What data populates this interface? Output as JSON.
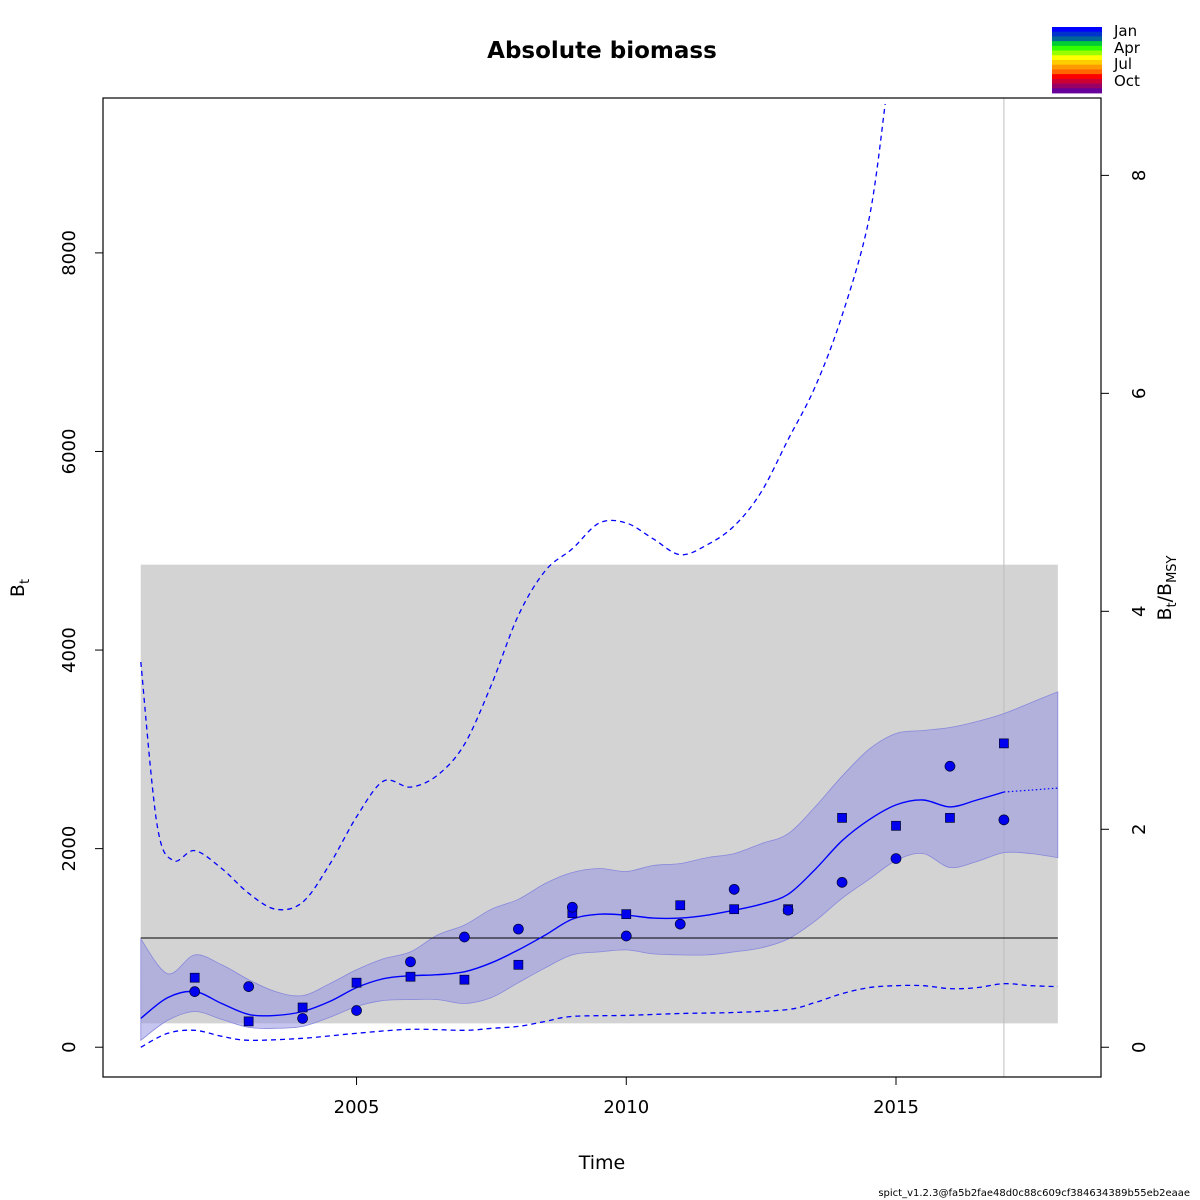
{
  "chart_data": {
    "type": "line",
    "title": "Absolute biomass",
    "xlabel": "Time",
    "ylabel_left": {
      "base": "B",
      "sub": "t"
    },
    "ylabel_right": {
      "base1": "B",
      "sub1": "t",
      "sep": "/",
      "base2": "B",
      "sub2": "MSY"
    },
    "xlim": [
      2000.3,
      2018.8
    ],
    "ylim_left": [
      -300,
      9560
    ],
    "ylim_right": [
      -0.273,
      8.71
    ],
    "bmsy_to_right_factor": 0.000911,
    "x_ticks": [
      "2005",
      "2010",
      "2015"
    ],
    "y_ticks_left": [
      "0",
      "2000",
      "4000",
      "6000",
      "8000"
    ],
    "y_ticks_right": [
      "0",
      "2",
      "4",
      "6",
      "8"
    ],
    "vertical_line_x": 2017,
    "bmsy_line_y": 1100,
    "bmsy_ci_band": {
      "x": [
        2001,
        2018
      ],
      "y": [
        240,
        4860
      ]
    },
    "biomass_estimate": {
      "x": [
        2001,
        2001.5,
        2002,
        2002.5,
        2003,
        2003.5,
        2004,
        2004.5,
        2005,
        2005.5,
        2006,
        2006.5,
        2007,
        2007.5,
        2008,
        2008.5,
        2009,
        2009.5,
        2010,
        2010.5,
        2011,
        2011.5,
        2012,
        2012.5,
        2013,
        2013.5,
        2014,
        2014.5,
        2015,
        2015.5,
        2016,
        2016.5,
        2017
      ],
      "y": [
        290,
        500,
        560,
        440,
        330,
        320,
        360,
        460,
        600,
        690,
        720,
        730,
        760,
        850,
        980,
        1130,
        1290,
        1340,
        1330,
        1300,
        1300,
        1330,
        1380,
        1440,
        1540,
        1790,
        2080,
        2290,
        2440,
        2490,
        2420,
        2490,
        2570
      ]
    },
    "biomass_forecast": {
      "x": [
        2017,
        2017.5,
        2018
      ],
      "y": [
        2570,
        2590,
        2610
      ]
    },
    "biomass_ci_band": {
      "x": [
        2001,
        2001.5,
        2002,
        2002.5,
        2003,
        2003.5,
        2004,
        2004.5,
        2005,
        2005.5,
        2006,
        2006.5,
        2007,
        2007.5,
        2008,
        2008.5,
        2009,
        2009.5,
        2010,
        2010.5,
        2011,
        2011.5,
        2012,
        2012.5,
        2013,
        2013.5,
        2014,
        2014.5,
        2015,
        2015.5,
        2016,
        2016.5,
        2017,
        2017.5,
        2018
      ],
      "upper": [
        1090,
        740,
        930,
        830,
        680,
        560,
        520,
        640,
        780,
        890,
        960,
        1130,
        1230,
        1390,
        1490,
        1650,
        1760,
        1800,
        1770,
        1830,
        1850,
        1910,
        1950,
        2050,
        2150,
        2420,
        2730,
        3000,
        3160,
        3190,
        3220,
        3280,
        3360,
        3470,
        3580
      ],
      "lower": [
        70,
        270,
        360,
        280,
        200,
        190,
        210,
        300,
        410,
        470,
        480,
        480,
        440,
        500,
        650,
        800,
        930,
        960,
        980,
        940,
        930,
        930,
        960,
        1000,
        1090,
        1270,
        1500,
        1690,
        1880,
        1950,
        1810,
        1870,
        1960,
        1950,
        1910
      ]
    },
    "dashed_upper": {
      "x": [
        2001,
        2001.3,
        2001.6,
        2002,
        2002.5,
        2003,
        2003.5,
        2004,
        2004.5,
        2005,
        2005.5,
        2006,
        2006.5,
        2007,
        2007.5,
        2008,
        2008.5,
        2009,
        2009.5,
        2010,
        2010.5,
        2011,
        2011.5,
        2012,
        2012.5,
        2013,
        2013.5,
        2014,
        2014.5,
        2014.8
      ],
      "y": [
        3880,
        2250,
        1880,
        1980,
        1800,
        1550,
        1390,
        1460,
        1840,
        2320,
        2680,
        2620,
        2740,
        3050,
        3650,
        4350,
        4800,
        5020,
        5280,
        5280,
        5120,
        4960,
        5060,
        5250,
        5590,
        6120,
        6650,
        7370,
        8340,
        9500
      ]
    },
    "dashed_lower": {
      "x": [
        2001,
        2001.5,
        2002,
        2002.5,
        2003,
        2004,
        2005,
        2006,
        2007,
        2007.5,
        2008,
        2008.5,
        2009,
        2010,
        2011,
        2012,
        2013,
        2013.5,
        2014,
        2014.5,
        2015,
        2015.5,
        2016,
        2016.5,
        2017,
        2017.5,
        2018
      ],
      "y": [
        0,
        140,
        170,
        110,
        70,
        90,
        140,
        180,
        170,
        190,
        210,
        260,
        310,
        320,
        340,
        350,
        380,
        450,
        540,
        600,
        620,
        620,
        590,
        600,
        640,
        620,
        610
      ]
    },
    "series": [
      {
        "name": "",
        "marker": "square",
        "x": [
          2002,
          2003,
          2004,
          2005,
          2006,
          2007,
          2008,
          2009,
          2010,
          2011,
          2012,
          2013,
          2014,
          2015,
          2016,
          2017
        ],
        "values": [
          700,
          260,
          400,
          650,
          710,
          680,
          830,
          1350,
          1340,
          1430,
          1390,
          1390,
          2310,
          2230,
          2310,
          3060
        ]
      },
      {
        "name": "",
        "marker": "circle",
        "x": [
          2002,
          2003,
          2004,
          2005,
          2006,
          2007,
          2008,
          2009,
          2010,
          2011,
          2012,
          2013,
          2014,
          2015,
          2016,
          2017
        ],
        "values": [
          560,
          610,
          290,
          370,
          860,
          1110,
          1190,
          1410,
          1120,
          1240,
          1590,
          1380,
          1660,
          1900,
          2830,
          2290
        ]
      }
    ],
    "legend": {
      "position": "top-right",
      "labels": [
        "Jan",
        "Apr",
        "Jul",
        "Oct"
      ],
      "colors": [
        "#0000ff",
        "#0033cc",
        "#006699",
        "#00cc33",
        "#33ff00",
        "#99ff00",
        "#ffff00",
        "#ffcc00",
        "#ff9900",
        "#ff6600",
        "#ff0000",
        "#cc0033",
        "#990066",
        "#660099"
      ]
    },
    "colors": {
      "estimate": "#0000ff",
      "ci_fill": "rgba(150,150,225,0.55)",
      "ci_edge": "#8888dd",
      "bmsy_band": "#d3d3d3",
      "vline": "#bebebe",
      "points_fill": "#0000ee"
    }
  },
  "footer": "spict_v1.2.3@fa5b2fae48d0c88c609cf384634389b55eb2eaae"
}
